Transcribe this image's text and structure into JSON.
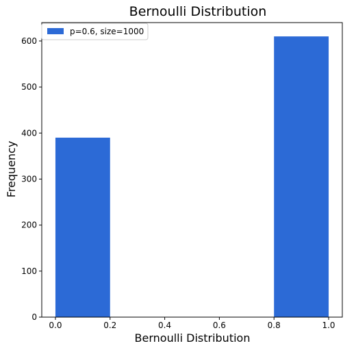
{
  "chart_data": {
    "type": "bar",
    "title": "Bernoulli Distribution",
    "xlabel": "Bernoulli Distribution",
    "ylabel": "Frequency",
    "bars": [
      {
        "x0": 0.0,
        "x1": 0.2,
        "value": 390
      },
      {
        "x0": 0.8,
        "x1": 1.0,
        "value": 610
      }
    ],
    "xlim": [
      -0.05,
      1.05
    ],
    "ylim": [
      0,
      640
    ],
    "xticks": [
      0.0,
      0.2,
      0.4,
      0.6,
      0.8,
      1.0
    ],
    "xtick_labels": [
      "0.0",
      "0.2",
      "0.4",
      "0.6",
      "0.8",
      "1.0"
    ],
    "yticks": [
      0,
      100,
      200,
      300,
      400,
      500,
      600
    ],
    "ytick_labels": [
      "0",
      "100",
      "200",
      "300",
      "400",
      "500",
      "600"
    ],
    "legend": {
      "label": "p=0.6, size=1000",
      "placement": "top-left"
    },
    "grid": false,
    "bar_color": "#2c6ad6"
  }
}
